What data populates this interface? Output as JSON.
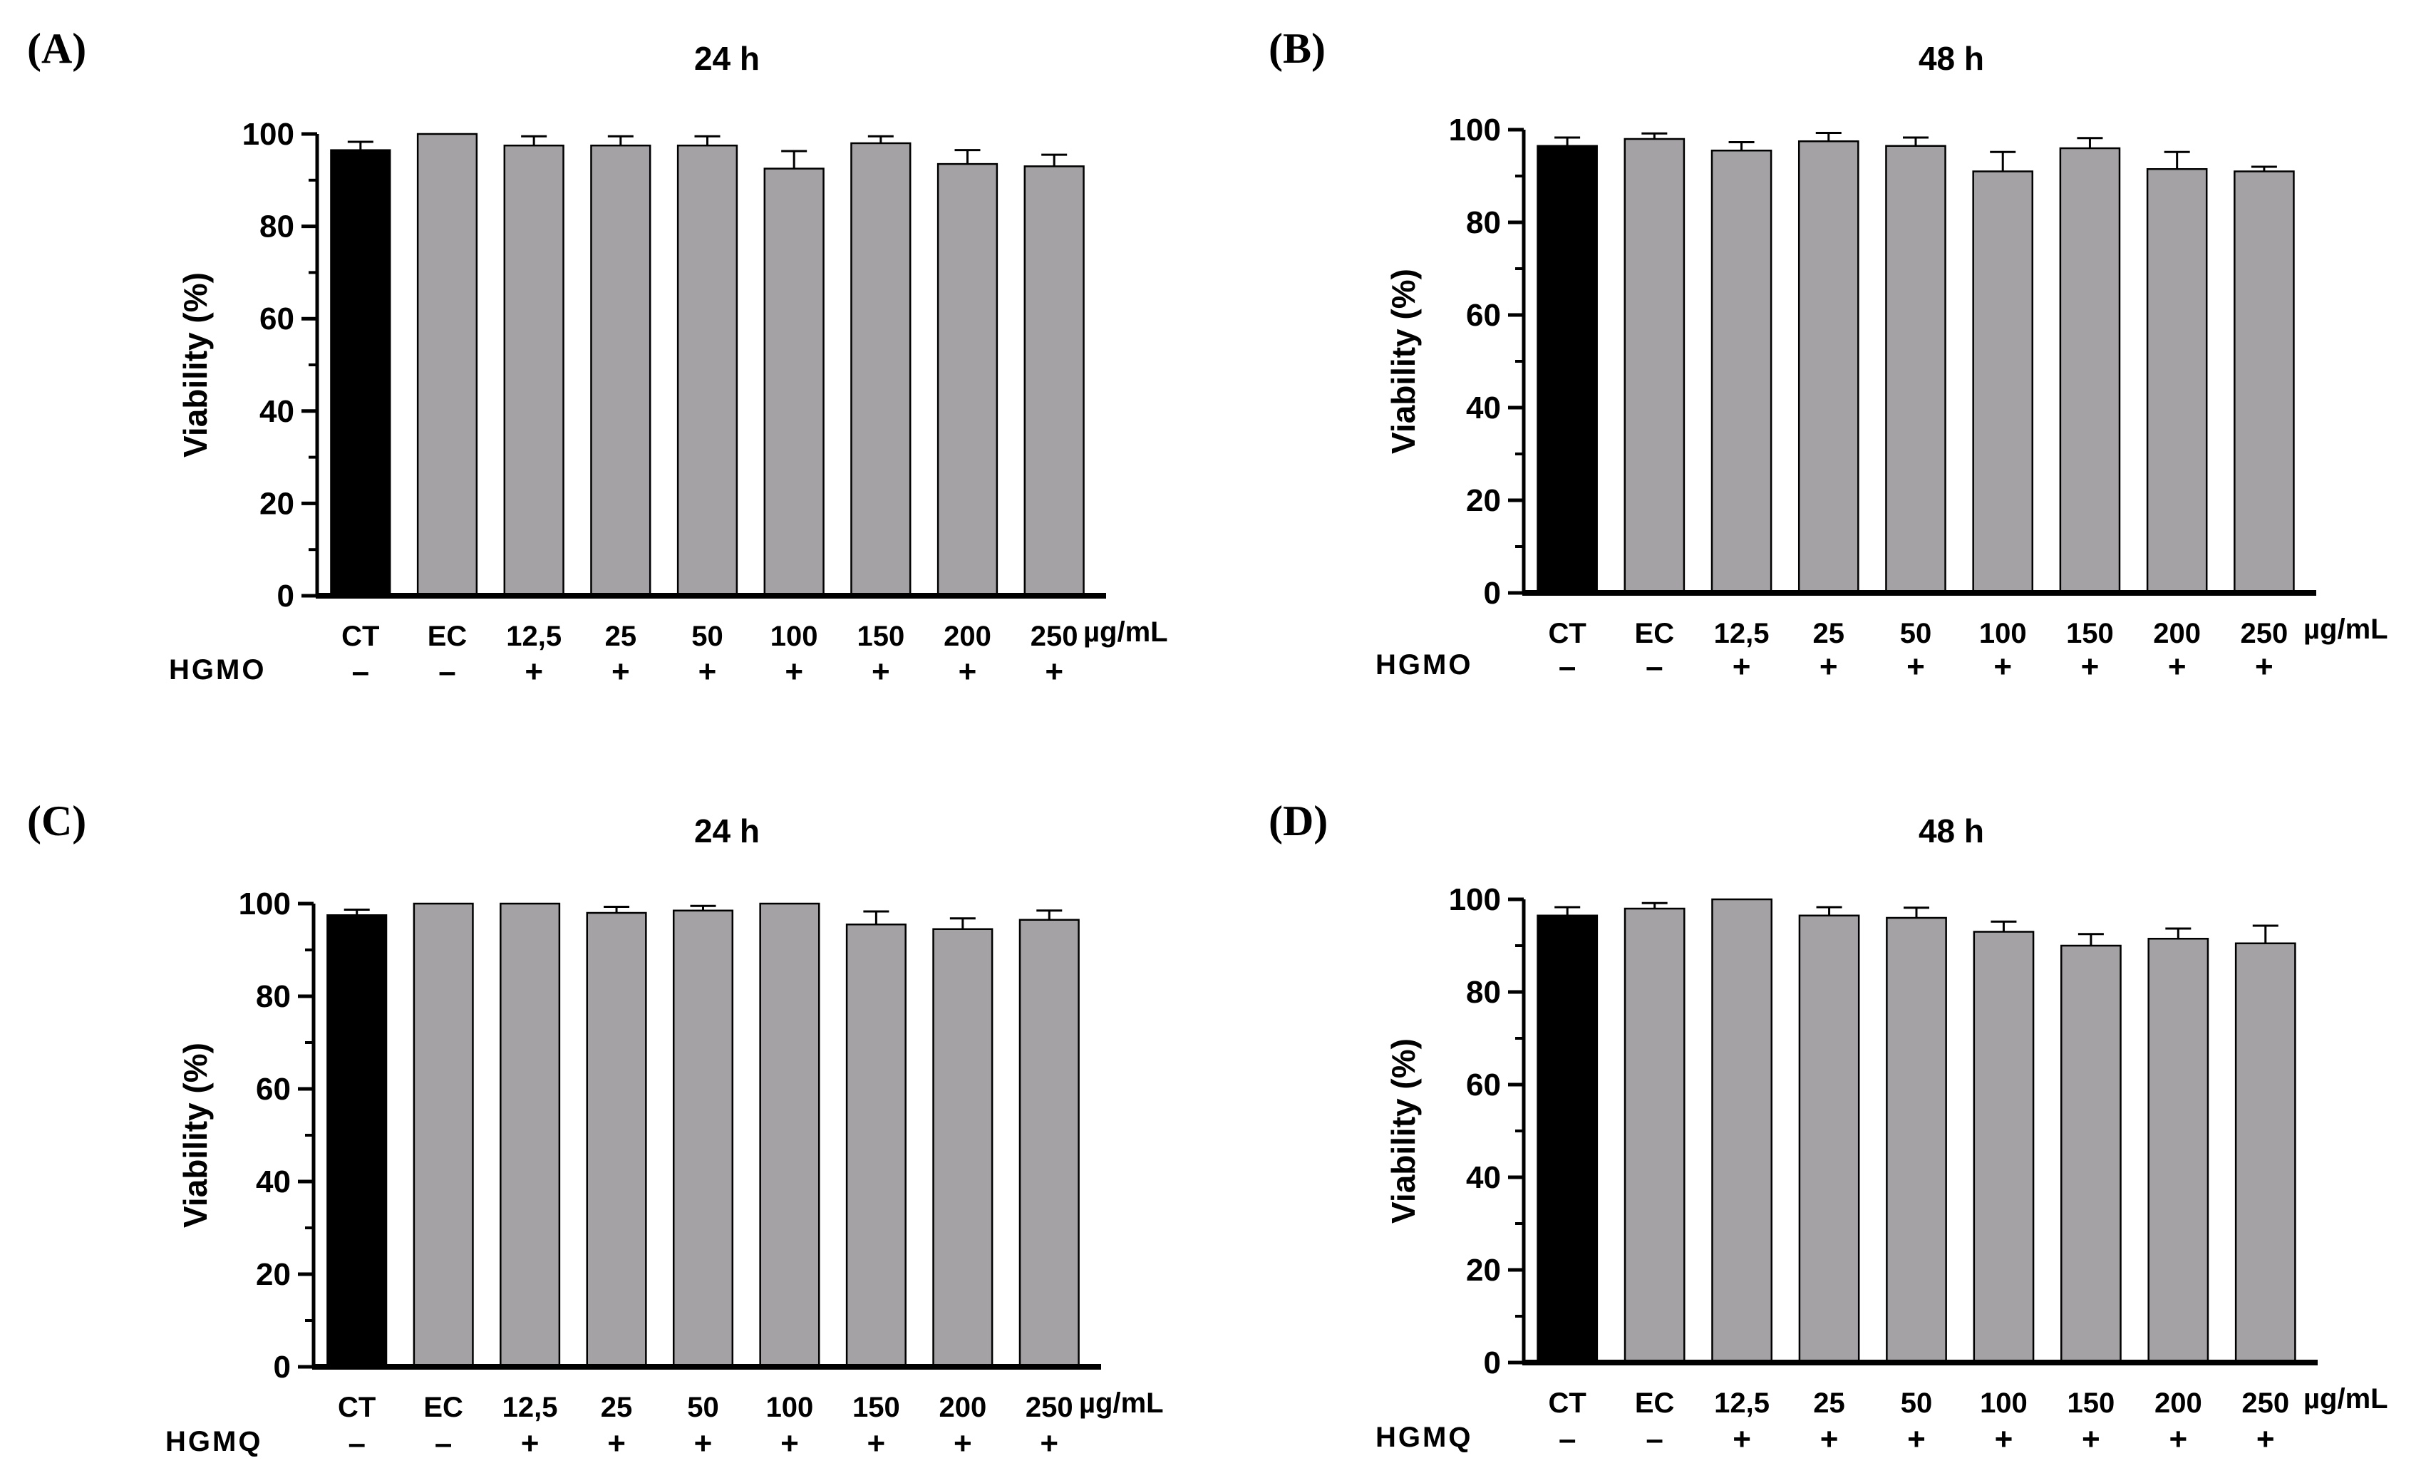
{
  "chart_data": [
    {
      "type": "bar",
      "panel": "(A)",
      "title": "24 h",
      "ylabel": "Viability (%)",
      "ylim": [
        0,
        100
      ],
      "yticks": [
        0,
        20,
        40,
        60,
        80,
        100
      ],
      "categories": [
        "CT",
        "EC",
        "12,5",
        "25",
        "50",
        "100",
        "150",
        "200",
        "250"
      ],
      "unit": "µg/mL",
      "treatment": "HGMO",
      "signs": [
        "–",
        "–",
        "+",
        "+",
        "+",
        "+",
        "+",
        "+",
        "+"
      ],
      "values": [
        96.5,
        100,
        97.5,
        97.5,
        97.5,
        92.5,
        98,
        93.5,
        93
      ],
      "errors": [
        1.8,
        0,
        2,
        2,
        2,
        3.8,
        1.5,
        3,
        2.5
      ],
      "colors": [
        "#000000",
        "#a5a2a6",
        "#a5a2a6",
        "#a5a2a6",
        "#a5a2a6",
        "#a5a2a6",
        "#a5a2a6",
        "#a5a2a6",
        "#a5a2a6"
      ]
    },
    {
      "type": "bar",
      "panel": "(B)",
      "title": "48 h",
      "ylabel": "Viability (%)",
      "ylim": [
        0,
        100
      ],
      "yticks": [
        0,
        20,
        40,
        60,
        80,
        100
      ],
      "categories": [
        "CT",
        "EC",
        "12,5",
        "25",
        "50",
        "100",
        "150",
        "200",
        "250"
      ],
      "unit": "µg/mL",
      "treatment": "HGMO",
      "signs": [
        "–",
        "–",
        "+",
        "+",
        "+",
        "+",
        "+",
        "+",
        "+"
      ],
      "values": [
        96.5,
        98,
        95.5,
        97.5,
        96.5,
        91,
        96,
        91.5,
        91
      ],
      "errors": [
        1.8,
        1.2,
        1.8,
        1.8,
        1.8,
        4.2,
        2.2,
        3.7,
        1
      ],
      "colors": [
        "#000000",
        "#a5a2a6",
        "#a5a2a6",
        "#a5a2a6",
        "#a5a2a6",
        "#a5a2a6",
        "#a5a2a6",
        "#a5a2a6",
        "#a5a2a6"
      ]
    },
    {
      "type": "bar",
      "panel": "(C)",
      "title": "24 h",
      "ylabel": "Viability (%)",
      "ylim": [
        0,
        100
      ],
      "yticks": [
        0,
        20,
        40,
        60,
        80,
        100
      ],
      "categories": [
        "CT",
        "EC",
        "12,5",
        "25",
        "50",
        "100",
        "150",
        "200",
        "250"
      ],
      "unit": "µg/mL",
      "treatment": "HGMQ",
      "signs": [
        "–",
        "–",
        "+",
        "+",
        "+",
        "+",
        "+",
        "+",
        "+"
      ],
      "values": [
        97.5,
        100,
        100,
        98,
        98.5,
        100,
        95.5,
        94.5,
        96.5
      ],
      "errors": [
        1.2,
        0,
        0,
        1.3,
        1,
        0,
        2.8,
        2.3,
        2
      ],
      "colors": [
        "#000000",
        "#a5a2a6",
        "#a5a2a6",
        "#a5a2a6",
        "#a5a2a6",
        "#a5a2a6",
        "#a5a2a6",
        "#a5a2a6",
        "#a5a2a6"
      ]
    },
    {
      "type": "bar",
      "panel": "(D)",
      "title": "48 h",
      "ylabel": "Viability (%)",
      "ylim": [
        0,
        100
      ],
      "yticks": [
        0,
        20,
        40,
        60,
        80,
        100
      ],
      "categories": [
        "CT",
        "EC",
        "12,5",
        "25",
        "50",
        "100",
        "150",
        "200",
        "250"
      ],
      "unit": "µg/mL",
      "treatment": "HGMQ",
      "signs": [
        "–",
        "–",
        "+",
        "+",
        "+",
        "+",
        "+",
        "+",
        "+"
      ],
      "values": [
        96.5,
        98,
        100,
        96.5,
        96,
        93,
        90,
        91.5,
        90.5
      ],
      "errors": [
        1.8,
        1.2,
        0,
        1.8,
        2.2,
        2.2,
        2.5,
        2.2,
        3.8
      ],
      "colors": [
        "#000000",
        "#a5a2a6",
        "#a5a2a6",
        "#a5a2a6",
        "#a5a2a6",
        "#a5a2a6",
        "#a5a2a6",
        "#a5a2a6",
        "#a5a2a6"
      ]
    }
  ]
}
